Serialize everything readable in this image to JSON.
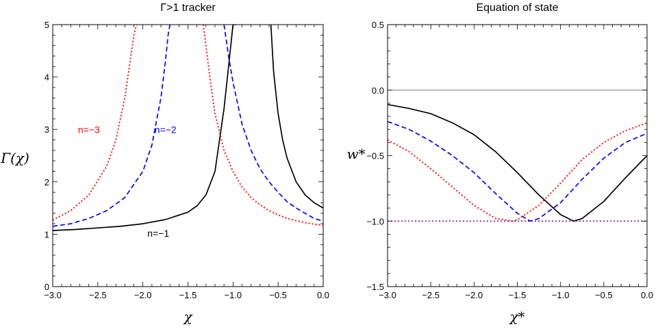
{
  "chart_data": [
    {
      "type": "line",
      "title": "Γ>1 tracker",
      "xlabel": "χ",
      "ylabel": "Γ(χ)",
      "xlim": [
        -3.0,
        0.0
      ],
      "ylim": [
        0,
        5
      ],
      "xticks": [
        "−3.0",
        "−2.5",
        "−2.0",
        "−1.5",
        "−1.0",
        "−0.5",
        "0.0"
      ],
      "xtick_values": [
        -3.0,
        -2.5,
        -2.0,
        -1.5,
        -1.0,
        -0.5,
        0.0
      ],
      "yticks": [
        "0",
        "1",
        "2",
        "3",
        "4",
        "5"
      ],
      "ytick_values": [
        0,
        1,
        2,
        3,
        4,
        5
      ],
      "grid": false,
      "series": [
        {
          "name": "n=−1",
          "color": "#000000",
          "dash": "solid",
          "x": [
            -3.0,
            -2.75,
            -2.5,
            -2.25,
            -2.0,
            -1.75,
            -1.5,
            -1.4,
            -1.3,
            -1.2,
            -1.1,
            -1.05,
            -1.0,
            -0.97
          ],
          "y": [
            1.07,
            1.09,
            1.12,
            1.15,
            1.2,
            1.28,
            1.42,
            1.54,
            1.75,
            2.2,
            3.4,
            4.2,
            5.0,
            5.0
          ],
          "x2": [
            -0.58,
            -0.55,
            -0.5,
            -0.45,
            -0.4,
            -0.3,
            -0.2,
            -0.1,
            0.0
          ],
          "y2": [
            5.0,
            4.1,
            3.3,
            2.8,
            2.45,
            2.0,
            1.75,
            1.6,
            1.5
          ]
        },
        {
          "name": "n=−2",
          "color": "#0000ff",
          "dash": "dashed",
          "x": [
            -3.0,
            -2.8,
            -2.6,
            -2.4,
            -2.2,
            -2.0,
            -1.9,
            -1.8,
            -1.75,
            -1.72,
            -1.7
          ],
          "y": [
            1.15,
            1.2,
            1.3,
            1.45,
            1.7,
            2.2,
            2.7,
            3.6,
            4.3,
            4.8,
            5.0
          ],
          "x2": [
            -1.1,
            -1.05,
            -1.0,
            -0.9,
            -0.8,
            -0.7,
            -0.6,
            -0.5,
            -0.4,
            -0.3,
            -0.2,
            -0.1,
            0.0
          ],
          "y2": [
            5.0,
            4.4,
            3.9,
            3.1,
            2.6,
            2.25,
            2.0,
            1.8,
            1.62,
            1.5,
            1.4,
            1.3,
            1.25
          ]
        },
        {
          "name": "n=−3",
          "color": "#ff0000",
          "dash": "dotted",
          "x": [
            -3.0,
            -2.8,
            -2.6,
            -2.4,
            -2.3,
            -2.2,
            -2.15,
            -2.1,
            -2.07
          ],
          "y": [
            1.27,
            1.45,
            1.75,
            2.3,
            2.8,
            3.6,
            4.2,
            4.8,
            5.0
          ],
          "x2": [
            -1.33,
            -1.3,
            -1.25,
            -1.2,
            -1.1,
            -1.0,
            -0.9,
            -0.8,
            -0.7,
            -0.6,
            -0.5,
            -0.4,
            -0.3,
            -0.2,
            -0.1,
            0.0
          ],
          "y2": [
            5.0,
            4.6,
            3.9,
            3.3,
            2.6,
            2.2,
            1.9,
            1.7,
            1.56,
            1.45,
            1.37,
            1.3,
            1.26,
            1.22,
            1.19,
            1.17
          ]
        }
      ],
      "annotations": [
        {
          "text": "n=−3",
          "x": -2.72,
          "y": 2.93,
          "color": "#ff0000"
        },
        {
          "text": "n=−2",
          "x": -1.87,
          "y": 2.93,
          "color": "#0000ff"
        },
        {
          "text": "n=−1",
          "x": -1.95,
          "y": 0.95,
          "color": "#000000"
        }
      ]
    },
    {
      "type": "line",
      "title": "Equation of state",
      "xlabel": "χ*",
      "ylabel": "w*",
      "xlim": [
        -3.0,
        0.0
      ],
      "ylim": [
        -1.5,
        0.5
      ],
      "xticks": [
        "−3.0",
        "−2.5",
        "−2.0",
        "−1.5",
        "−1.0",
        "−0.5",
        "0.0"
      ],
      "xtick_values": [
        -3.0,
        -2.5,
        -2.0,
        -1.5,
        -1.0,
        -0.5,
        0.0
      ],
      "yticks": [
        "−1.5",
        "−1.0",
        "−0.5",
        "0.0",
        "0.5"
      ],
      "ytick_values": [
        -1.5,
        -1.0,
        -0.5,
        0.0,
        0.5
      ],
      "grid": false,
      "reference_lines": [
        {
          "y": 0.0,
          "color": "#777777",
          "dash": "solid"
        },
        {
          "y": -1.0,
          "color": "#8000a0",
          "dash": "dotted"
        }
      ],
      "series": [
        {
          "name": "n=−1",
          "color": "#000000",
          "dash": "solid",
          "x": [
            -3.0,
            -2.75,
            -2.5,
            -2.25,
            -2.0,
            -1.75,
            -1.5,
            -1.25,
            -1.0,
            -0.85,
            -0.75,
            -0.5,
            -0.25,
            0.0
          ],
          "y": [
            -0.11,
            -0.14,
            -0.18,
            -0.25,
            -0.34,
            -0.47,
            -0.63,
            -0.8,
            -0.95,
            -1.0,
            -0.98,
            -0.85,
            -0.67,
            -0.5
          ]
        },
        {
          "name": "n=−2",
          "color": "#0000ff",
          "dash": "dashed",
          "x": [
            -3.0,
            -2.75,
            -2.5,
            -2.25,
            -2.0,
            -1.75,
            -1.5,
            -1.35,
            -1.25,
            -1.0,
            -0.75,
            -0.5,
            -0.25,
            0.0
          ],
          "y": [
            -0.24,
            -0.3,
            -0.39,
            -0.5,
            -0.63,
            -0.79,
            -0.94,
            -1.0,
            -0.98,
            -0.86,
            -0.68,
            -0.52,
            -0.4,
            -0.33
          ]
        },
        {
          "name": "n=−3",
          "color": "#ff0000",
          "dash": "dotted",
          "x": [
            -3.0,
            -2.75,
            -2.5,
            -2.25,
            -2.0,
            -1.75,
            -1.55,
            -1.5,
            -1.25,
            -1.0,
            -0.75,
            -0.5,
            -0.25,
            0.0
          ],
          "y": [
            -0.38,
            -0.47,
            -0.6,
            -0.74,
            -0.88,
            -0.98,
            -1.0,
            -0.99,
            -0.88,
            -0.71,
            -0.53,
            -0.4,
            -0.31,
            -0.25
          ]
        }
      ],
      "annotations": []
    }
  ]
}
